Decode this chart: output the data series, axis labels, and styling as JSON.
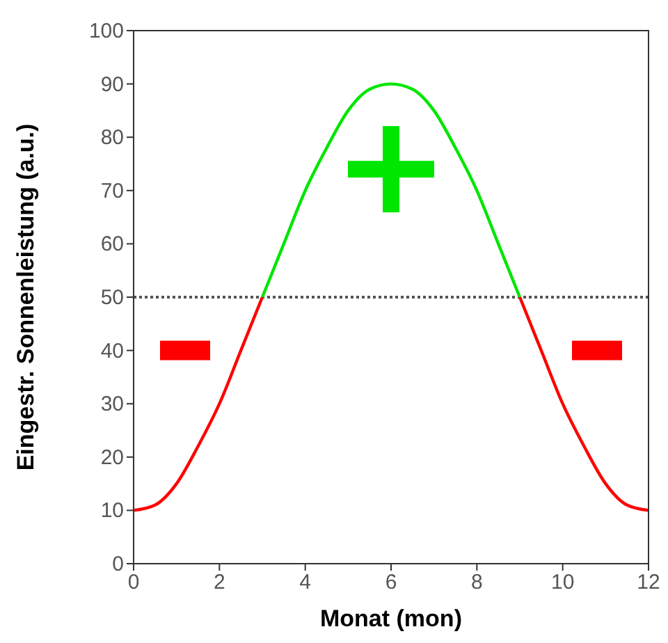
{
  "chart_data": {
    "type": "line",
    "xlabel": "Monat (mon)",
    "ylabel": "Eingestr. Sonnenleistung (a.u.)",
    "xlim": [
      0,
      12
    ],
    "ylim": [
      0,
      100
    ],
    "xticks": [
      0,
      2,
      4,
      6,
      8,
      10,
      12
    ],
    "yticks": [
      0,
      10,
      20,
      30,
      40,
      50,
      60,
      70,
      80,
      90,
      100
    ],
    "grid": false,
    "marker": "none",
    "line_style": "solid",
    "series": [
      {
        "color": "#ff0000",
        "x": [
          0,
          0.5,
          1,
          1.5,
          2,
          2.5,
          3
        ],
        "values": [
          10,
          11,
          15,
          22,
          30,
          40,
          50
        ]
      },
      {
        "color": "#00e600",
        "x": [
          3,
          3.5,
          4,
          4.5,
          5,
          5.5,
          6,
          6.5,
          7,
          7.5,
          8,
          8.5,
          9
        ],
        "values": [
          50,
          60,
          70,
          78,
          85,
          89,
          90,
          89,
          85,
          78,
          70,
          60,
          50
        ]
      },
      {
        "color": "#ff0000",
        "x": [
          9,
          9.5,
          10,
          10.5,
          11,
          11.5,
          12
        ],
        "values": [
          50,
          40,
          30,
          22,
          15,
          11,
          10
        ]
      }
    ],
    "ref_lines": [
      {
        "axis": "y",
        "value": 50,
        "color": "#555555",
        "line_style": "dotted"
      }
    ]
  }
}
